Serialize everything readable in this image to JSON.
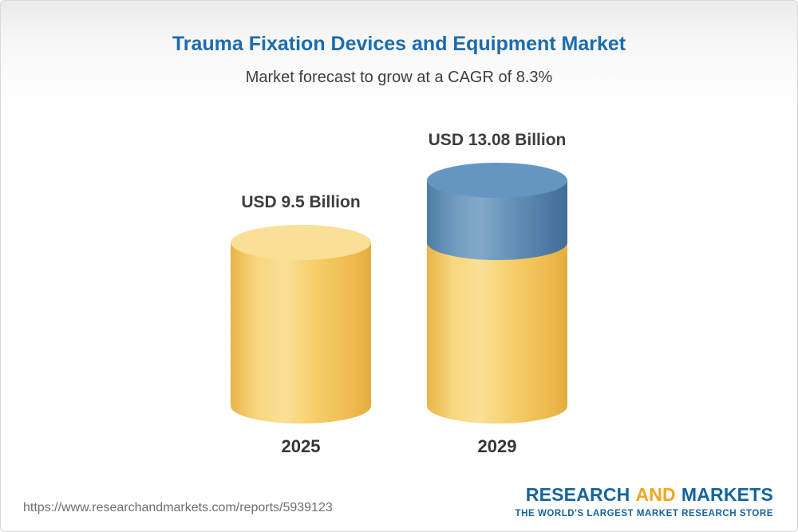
{
  "chart_data": {
    "type": "bar",
    "title": "Trauma Fixation Devices and Equipment Market",
    "subtitle": "Market forecast to grow at a CAGR of 8.3%",
    "categories": [
      "2025",
      "2029"
    ],
    "values": [
      9.5,
      13.08
    ],
    "value_labels": [
      "USD 9.5 Billion",
      "USD 13.08 Billion"
    ],
    "unit": "USD Billion",
    "cagr_percent": 8.3,
    "ylim": [
      0,
      14
    ],
    "grid": false,
    "legend": "none",
    "colors": {
      "bar_base": "#F5CD68",
      "bar_growth": "#5C8DB5",
      "title_text": "#1B6CAE",
      "label_text": "#3D3D3D"
    }
  },
  "footer": {
    "url": "https://www.researchandmarkets.com/reports/5939123",
    "logo": {
      "word1": "RESEARCH",
      "word2": "AND",
      "word3": "MARKETS",
      "tagline": "THE WORLD'S LARGEST MARKET RESEARCH STORE"
    }
  }
}
